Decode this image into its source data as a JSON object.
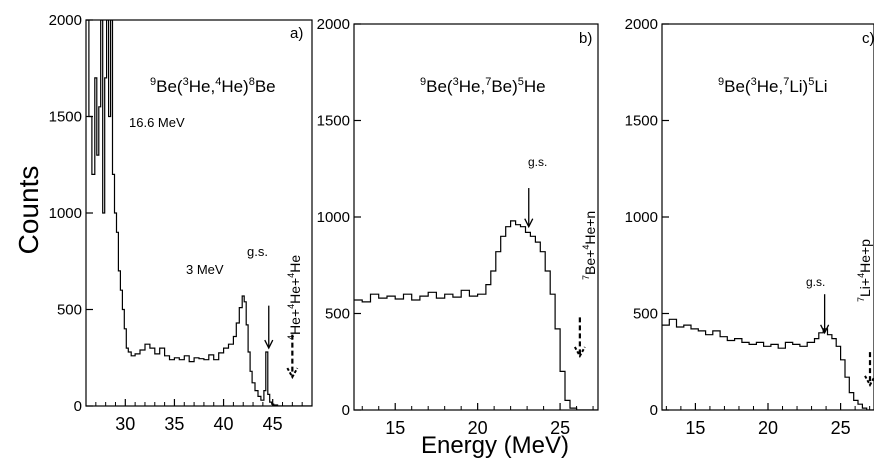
{
  "figure": {
    "ylabel": "Counts",
    "xlabel": "Energy (MeV)"
  },
  "chart_data": [
    {
      "type": "histogram",
      "panel": "a)",
      "reaction": {
        "pre": "9",
        "a": "Be(",
        "b": "3",
        "c": "He,",
        "d": "4",
        "e": "He)",
        "f": "8",
        "g": "Be"
      },
      "xlim": [
        26,
        49
      ],
      "ylim": [
        0,
        2000
      ],
      "xticks": [
        30,
        35,
        40,
        45
      ],
      "yticks": [
        0,
        500,
        1000,
        1500,
        2000
      ],
      "x": [
        26.0,
        26.3,
        26.6,
        26.9,
        27.1,
        27.3,
        27.5,
        27.7,
        27.9,
        28.1,
        28.3,
        28.5,
        28.7,
        28.9,
        29.1,
        29.3,
        29.5,
        29.7,
        29.9,
        30.1,
        30.3,
        30.6,
        31.0,
        31.5,
        32.0,
        32.5,
        33.0,
        33.5,
        34.0,
        34.5,
        35.0,
        35.5,
        36.0,
        36.5,
        37.0,
        37.5,
        38.0,
        38.5,
        39.0,
        39.5,
        40.0,
        40.5,
        41.0,
        41.3,
        41.6,
        41.9,
        42.1,
        42.3,
        42.5,
        42.7,
        42.9,
        43.2,
        43.5,
        43.8,
        44.1,
        44.3,
        44.5,
        44.7,
        44.9,
        45.1,
        45.5,
        46.0,
        47.0,
        48.0
      ],
      "values": [
        2000,
        1500,
        1200,
        1700,
        1300,
        1550,
        2000,
        1000,
        1700,
        2000,
        1500,
        2000,
        1200,
        1000,
        900,
        700,
        600,
        500,
        400,
        300,
        280,
        260,
        270,
        290,
        320,
        300,
        270,
        300,
        260,
        240,
        250,
        240,
        260,
        230,
        250,
        245,
        240,
        265,
        240,
        275,
        300,
        320,
        360,
        430,
        510,
        570,
        540,
        420,
        280,
        180,
        120,
        80,
        50,
        30,
        80,
        280,
        60,
        20,
        10,
        5,
        0,
        0,
        0,
        0
      ],
      "annotations": {
        "peak1": "16.6 MeV",
        "peak2": "3 MeV",
        "gs": "g.s.",
        "threshold": {
          "a": "4",
          "b": "He+",
          "c": "4",
          "d": "He+",
          "e": "4",
          "f": "He"
        }
      }
    },
    {
      "type": "histogram",
      "panel": "b)",
      "reaction": {
        "pre": "9",
        "a": "Be(",
        "b": "3",
        "c": "He,",
        "d": "7",
        "e": "Be)",
        "f": "5",
        "g": "He"
      },
      "xlim": [
        12.5,
        27.3
      ],
      "ylim": [
        0,
        2000
      ],
      "xticks": [
        15,
        20,
        25
      ],
      "yticks": [
        0,
        500,
        1000,
        1500,
        2000
      ],
      "x": [
        12.5,
        13.0,
        13.5,
        14.0,
        14.5,
        15.0,
        15.5,
        16.0,
        16.5,
        17.0,
        17.5,
        18.0,
        18.5,
        19.0,
        19.5,
        20.0,
        20.5,
        20.8,
        21.1,
        21.4,
        21.7,
        22.0,
        22.3,
        22.6,
        22.9,
        23.2,
        23.5,
        23.8,
        24.1,
        24.4,
        24.7,
        25.0,
        25.3,
        25.6,
        26.0,
        26.5,
        27.0
      ],
      "values": [
        570,
        560,
        600,
        580,
        590,
        575,
        600,
        570,
        590,
        610,
        580,
        600,
        585,
        620,
        590,
        600,
        650,
        720,
        820,
        900,
        950,
        980,
        960,
        950,
        920,
        900,
        870,
        820,
        720,
        600,
        420,
        200,
        50,
        10,
        0,
        0,
        0
      ],
      "annotations": {
        "gs": "g.s.",
        "threshold": {
          "a": "7",
          "b": "Be+",
          "c": "4",
          "d": "He+n"
        }
      }
    },
    {
      "type": "histogram",
      "panel": "c)",
      "reaction": {
        "pre": "9",
        "a": "Be(",
        "b": "3",
        "c": "He,",
        "d": "7",
        "e": "Li)",
        "f": "5",
        "g": "Li"
      },
      "xlim": [
        12.7,
        27.3
      ],
      "ylim": [
        0,
        2000
      ],
      "xticks": [
        15,
        20,
        25
      ],
      "yticks": [
        0,
        500,
        1000,
        1500,
        2000
      ],
      "x": [
        12.7,
        13.2,
        13.7,
        14.2,
        14.7,
        15.2,
        15.7,
        16.2,
        16.7,
        17.2,
        17.7,
        18.2,
        18.7,
        19.2,
        19.7,
        20.2,
        20.7,
        21.2,
        21.7,
        22.2,
        22.7,
        23.2,
        23.5,
        23.8,
        24.1,
        24.4,
        24.7,
        25.0,
        25.3,
        25.6,
        25.9,
        26.2,
        26.5,
        26.8,
        27.1
      ],
      "values": [
        440,
        470,
        430,
        440,
        420,
        410,
        390,
        410,
        380,
        360,
        370,
        350,
        340,
        350,
        330,
        340,
        320,
        350,
        340,
        330,
        350,
        370,
        400,
        420,
        390,
        370,
        330,
        260,
        170,
        90,
        50,
        30,
        10,
        0,
        0
      ],
      "annotations": {
        "gs": "g.s.",
        "threshold": {
          "a": "7",
          "b": "Li+",
          "c": "4",
          "d": "He+p"
        }
      }
    }
  ]
}
